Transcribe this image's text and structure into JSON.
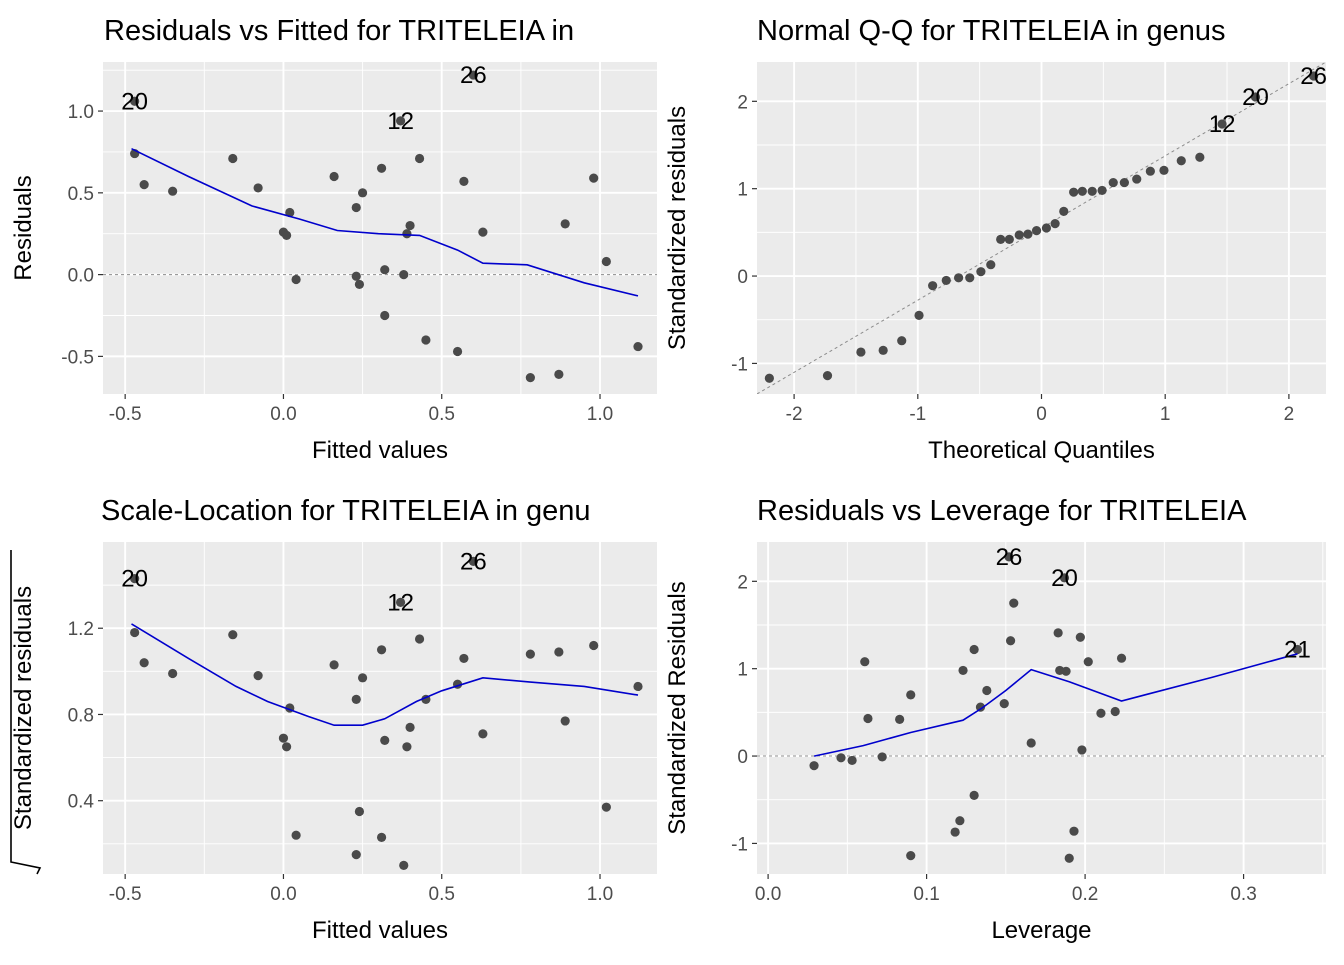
{
  "colors": {
    "panel_bg": "#EBEBEB",
    "grid": "#FFFFFF",
    "point": "#4A4A4A",
    "smooth": "#0000CC",
    "refline": "#8C8C8C"
  },
  "chart_data": [
    {
      "type": "scatter",
      "title": "Residuals vs Fitted for TRITELEIA in",
      "xlabel": "Fitted values",
      "ylabel": "Residuals",
      "xlim": [
        -0.57,
        1.18
      ],
      "ylim": [
        -0.73,
        1.3
      ],
      "x_ticks": [
        -0.5,
        0.0,
        0.5,
        1.0
      ],
      "x_tick_labels": [
        "-0.5",
        "0.0",
        "0.5",
        "1.0"
      ],
      "y_ticks": [
        -0.5,
        0.0,
        0.5,
        1.0
      ],
      "y_tick_labels": [
        "-0.5",
        "0.0",
        "0.5",
        "1.0"
      ],
      "points": [
        {
          "x": -0.47,
          "y": 1.06
        },
        {
          "x": -0.47,
          "y": 0.74
        },
        {
          "x": -0.44,
          "y": 0.55
        },
        {
          "x": -0.35,
          "y": 0.51
        },
        {
          "x": -0.16,
          "y": 0.71
        },
        {
          "x": -0.08,
          "y": 0.53
        },
        {
          "x": 0.0,
          "y": 0.26
        },
        {
          "x": 0.01,
          "y": 0.24
        },
        {
          "x": 0.02,
          "y": 0.38
        },
        {
          "x": 0.04,
          "y": -0.03
        },
        {
          "x": 0.16,
          "y": 0.6
        },
        {
          "x": 0.23,
          "y": 0.41
        },
        {
          "x": 0.23,
          "y": -0.01
        },
        {
          "x": 0.24,
          "y": -0.06
        },
        {
          "x": 0.25,
          "y": 0.5
        },
        {
          "x": 0.31,
          "y": 0.65
        },
        {
          "x": 0.32,
          "y": 0.03
        },
        {
          "x": 0.32,
          "y": -0.25
        },
        {
          "x": 0.37,
          "y": 0.94
        },
        {
          "x": 0.38,
          "y": 0.0
        },
        {
          "x": 0.39,
          "y": 0.25
        },
        {
          "x": 0.4,
          "y": 0.3
        },
        {
          "x": 0.43,
          "y": 0.71
        },
        {
          "x": 0.45,
          "y": -0.4
        },
        {
          "x": 0.55,
          "y": -0.47
        },
        {
          "x": 0.57,
          "y": 0.57
        },
        {
          "x": 0.6,
          "y": 1.22
        },
        {
          "x": 0.63,
          "y": 0.26
        },
        {
          "x": 0.78,
          "y": -0.63
        },
        {
          "x": 0.87,
          "y": -0.61
        },
        {
          "x": 0.89,
          "y": 0.31
        },
        {
          "x": 0.98,
          "y": 0.59
        },
        {
          "x": 1.02,
          "y": 0.08
        },
        {
          "x": 1.12,
          "y": -0.44
        }
      ],
      "labels": [
        {
          "text": "20",
          "x": -0.47,
          "y": 1.06
        },
        {
          "text": "12",
          "x": 0.37,
          "y": 0.94
        },
        {
          "text": "26",
          "x": 0.6,
          "y": 1.22
        }
      ],
      "smooth_line": [
        {
          "x": -0.48,
          "y": 0.77
        },
        {
          "x": -0.3,
          "y": 0.6
        },
        {
          "x": -0.1,
          "y": 0.42
        },
        {
          "x": 0.05,
          "y": 0.34
        },
        {
          "x": 0.17,
          "y": 0.27
        },
        {
          "x": 0.3,
          "y": 0.25
        },
        {
          "x": 0.43,
          "y": 0.24
        },
        {
          "x": 0.55,
          "y": 0.15
        },
        {
          "x": 0.63,
          "y": 0.07
        },
        {
          "x": 0.77,
          "y": 0.06
        },
        {
          "x": 0.95,
          "y": -0.05
        },
        {
          "x": 1.12,
          "y": -0.13
        }
      ],
      "ref_line": {
        "kind": "hline",
        "y": 0
      }
    },
    {
      "type": "scatter",
      "title": "Normal Q-Q for TRITELEIA in genus",
      "xlabel": "Theoretical Quantiles",
      "ylabel": "Standardized residuals",
      "xlim": [
        -2.3,
        2.3
      ],
      "ylim": [
        -1.35,
        2.45
      ],
      "x_ticks": [
        -2,
        -1,
        0,
        1,
        2
      ],
      "x_tick_labels": [
        "-2",
        "-1",
        "0",
        "1",
        "2"
      ],
      "y_ticks": [
        -1,
        0,
        1,
        2
      ],
      "y_tick_labels": [
        "-1",
        "0",
        "1",
        "2"
      ],
      "points": [
        {
          "x": -2.2,
          "y": -1.17
        },
        {
          "x": -1.73,
          "y": -1.14
        },
        {
          "x": -1.46,
          "y": -0.87
        },
        {
          "x": -1.28,
          "y": -0.85
        },
        {
          "x": -1.13,
          "y": -0.74
        },
        {
          "x": -0.99,
          "y": -0.45
        },
        {
          "x": -0.88,
          "y": -0.11
        },
        {
          "x": -0.77,
          "y": -0.05
        },
        {
          "x": -0.67,
          "y": -0.02
        },
        {
          "x": -0.58,
          "y": -0.02
        },
        {
          "x": -0.49,
          "y": 0.05
        },
        {
          "x": -0.41,
          "y": 0.13
        },
        {
          "x": -0.33,
          "y": 0.42
        },
        {
          "x": -0.26,
          "y": 0.42
        },
        {
          "x": -0.18,
          "y": 0.47
        },
        {
          "x": -0.11,
          "y": 0.48
        },
        {
          "x": -0.04,
          "y": 0.52
        },
        {
          "x": 0.04,
          "y": 0.55
        },
        {
          "x": 0.11,
          "y": 0.6
        },
        {
          "x": 0.18,
          "y": 0.74
        },
        {
          "x": 0.26,
          "y": 0.96
        },
        {
          "x": 0.33,
          "y": 0.97
        },
        {
          "x": 0.41,
          "y": 0.97
        },
        {
          "x": 0.49,
          "y": 0.98
        },
        {
          "x": 0.58,
          "y": 1.07
        },
        {
          "x": 0.67,
          "y": 1.07
        },
        {
          "x": 0.77,
          "y": 1.11
        },
        {
          "x": 0.88,
          "y": 1.2
        },
        {
          "x": 0.99,
          "y": 1.21
        },
        {
          "x": 1.13,
          "y": 1.32
        },
        {
          "x": 1.28,
          "y": 1.36
        },
        {
          "x": 1.46,
          "y": 1.74
        },
        {
          "x": 1.73,
          "y": 2.05
        },
        {
          "x": 2.2,
          "y": 2.29
        }
      ],
      "labels": [
        {
          "text": "12",
          "x": 1.46,
          "y": 1.74
        },
        {
          "text": "20",
          "x": 1.73,
          "y": 2.05
        },
        {
          "text": "26",
          "x": 2.2,
          "y": 2.29
        }
      ],
      "ref_line": {
        "kind": "line",
        "x1": -2.3,
        "y1": -1.35,
        "x2": 2.3,
        "y2": 2.45
      }
    },
    {
      "type": "scatter",
      "title": "Scale-Location for TRITELEIA in genu",
      "xlabel": "Fitted values",
      "ylabel": "Standardized residuals",
      "ylabel_sqrt": true,
      "xlim": [
        -0.57,
        1.18
      ],
      "ylim": [
        0.06,
        1.6
      ],
      "x_ticks": [
        -0.5,
        0.0,
        0.5,
        1.0
      ],
      "x_tick_labels": [
        "-0.5",
        "0.0",
        "0.5",
        "1.0"
      ],
      "y_ticks": [
        0.4,
        0.8,
        1.2
      ],
      "y_tick_labels": [
        "0.4",
        "0.8",
        "1.2"
      ],
      "points": [
        {
          "x": -0.47,
          "y": 1.43
        },
        {
          "x": -0.47,
          "y": 1.18
        },
        {
          "x": -0.44,
          "y": 1.04
        },
        {
          "x": -0.35,
          "y": 0.99
        },
        {
          "x": -0.16,
          "y": 1.17
        },
        {
          "x": -0.08,
          "y": 0.98
        },
        {
          "x": 0.0,
          "y": 0.69
        },
        {
          "x": 0.01,
          "y": 0.65
        },
        {
          "x": 0.02,
          "y": 0.83
        },
        {
          "x": 0.04,
          "y": 0.24
        },
        {
          "x": 0.16,
          "y": 1.03
        },
        {
          "x": 0.23,
          "y": 0.87
        },
        {
          "x": 0.23,
          "y": 0.15
        },
        {
          "x": 0.24,
          "y": 0.35
        },
        {
          "x": 0.25,
          "y": 0.97
        },
        {
          "x": 0.31,
          "y": 1.1
        },
        {
          "x": 0.31,
          "y": 0.23
        },
        {
          "x": 0.32,
          "y": 0.68
        },
        {
          "x": 0.37,
          "y": 1.32
        },
        {
          "x": 0.38,
          "y": 0.1
        },
        {
          "x": 0.39,
          "y": 0.65
        },
        {
          "x": 0.4,
          "y": 0.74
        },
        {
          "x": 0.43,
          "y": 1.15
        },
        {
          "x": 0.45,
          "y": 0.87
        },
        {
          "x": 0.55,
          "y": 0.94
        },
        {
          "x": 0.57,
          "y": 1.06
        },
        {
          "x": 0.6,
          "y": 1.51
        },
        {
          "x": 0.63,
          "y": 0.71
        },
        {
          "x": 0.78,
          "y": 1.08
        },
        {
          "x": 0.87,
          "y": 1.09
        },
        {
          "x": 0.89,
          "y": 0.77
        },
        {
          "x": 0.98,
          "y": 1.12
        },
        {
          "x": 1.02,
          "y": 0.37
        },
        {
          "x": 1.12,
          "y": 0.93
        }
      ],
      "labels": [
        {
          "text": "20",
          "x": -0.47,
          "y": 1.43
        },
        {
          "text": "12",
          "x": 0.37,
          "y": 1.32
        },
        {
          "text": "26",
          "x": 0.6,
          "y": 1.51
        }
      ],
      "smooth_line": [
        {
          "x": -0.48,
          "y": 1.22
        },
        {
          "x": -0.3,
          "y": 1.06
        },
        {
          "x": -0.15,
          "y": 0.93
        },
        {
          "x": -0.05,
          "y": 0.86
        },
        {
          "x": 0.08,
          "y": 0.79
        },
        {
          "x": 0.16,
          "y": 0.75
        },
        {
          "x": 0.25,
          "y": 0.75
        },
        {
          "x": 0.32,
          "y": 0.78
        },
        {
          "x": 0.42,
          "y": 0.86
        },
        {
          "x": 0.5,
          "y": 0.91
        },
        {
          "x": 0.63,
          "y": 0.97
        },
        {
          "x": 0.78,
          "y": 0.95
        },
        {
          "x": 0.95,
          "y": 0.93
        },
        {
          "x": 1.12,
          "y": 0.89
        }
      ]
    },
    {
      "type": "scatter",
      "title": "Residuals vs Leverage for TRITELEIA",
      "xlabel": "Leverage",
      "ylabel": "Standardized Residuals",
      "xlim": [
        -0.007,
        0.352
      ],
      "ylim": [
        -1.35,
        2.45
      ],
      "x_ticks": [
        0.0,
        0.1,
        0.2,
        0.3
      ],
      "x_tick_labels": [
        "0.0",
        "0.1",
        "0.2",
        "0.3"
      ],
      "y_ticks": [
        -1,
        0,
        1,
        2
      ],
      "y_tick_labels": [
        "-1",
        "0",
        "1",
        "2"
      ],
      "points": [
        {
          "x": 0.029,
          "y": -0.11
        },
        {
          "x": 0.046,
          "y": -0.02
        },
        {
          "x": 0.053,
          "y": -0.05
        },
        {
          "x": 0.061,
          "y": 1.08
        },
        {
          "x": 0.063,
          "y": 0.43
        },
        {
          "x": 0.072,
          "y": -0.01
        },
        {
          "x": 0.083,
          "y": 0.42
        },
        {
          "x": 0.09,
          "y": 0.7
        },
        {
          "x": 0.09,
          "y": -1.14
        },
        {
          "x": 0.118,
          "y": -0.87
        },
        {
          "x": 0.121,
          "y": -0.74
        },
        {
          "x": 0.123,
          "y": 0.98
        },
        {
          "x": 0.13,
          "y": 1.22
        },
        {
          "x": 0.13,
          "y": -0.45
        },
        {
          "x": 0.134,
          "y": 0.56
        },
        {
          "x": 0.138,
          "y": 0.75
        },
        {
          "x": 0.149,
          "y": 0.6
        },
        {
          "x": 0.152,
          "y": 2.28
        },
        {
          "x": 0.153,
          "y": 1.32
        },
        {
          "x": 0.155,
          "y": 1.75
        },
        {
          "x": 0.166,
          "y": 0.15
        },
        {
          "x": 0.183,
          "y": 1.41
        },
        {
          "x": 0.184,
          "y": 0.98
        },
        {
          "x": 0.187,
          "y": 2.04
        },
        {
          "x": 0.188,
          "y": 0.97
        },
        {
          "x": 0.19,
          "y": -1.17
        },
        {
          "x": 0.193,
          "y": -0.86
        },
        {
          "x": 0.197,
          "y": 1.36
        },
        {
          "x": 0.198,
          "y": 0.07
        },
        {
          "x": 0.202,
          "y": 1.08
        },
        {
          "x": 0.21,
          "y": 0.49
        },
        {
          "x": 0.219,
          "y": 0.51
        },
        {
          "x": 0.223,
          "y": 1.12
        },
        {
          "x": 0.334,
          "y": 1.22
        }
      ],
      "labels": [
        {
          "text": "26",
          "x": 0.152,
          "y": 2.28
        },
        {
          "text": "20",
          "x": 0.187,
          "y": 2.04
        },
        {
          "text": "21",
          "x": 0.334,
          "y": 1.22
        }
      ],
      "smooth_line": [
        {
          "x": 0.029,
          "y": 0.0
        },
        {
          "x": 0.06,
          "y": 0.12
        },
        {
          "x": 0.09,
          "y": 0.27
        },
        {
          "x": 0.123,
          "y": 0.41
        },
        {
          "x": 0.135,
          "y": 0.55
        },
        {
          "x": 0.15,
          "y": 0.75
        },
        {
          "x": 0.166,
          "y": 0.99
        },
        {
          "x": 0.19,
          "y": 0.85
        },
        {
          "x": 0.223,
          "y": 0.63
        },
        {
          "x": 0.28,
          "y": 0.9
        },
        {
          "x": 0.334,
          "y": 1.17
        }
      ],
      "ref_line": {
        "kind": "hline",
        "y": 0
      }
    }
  ]
}
